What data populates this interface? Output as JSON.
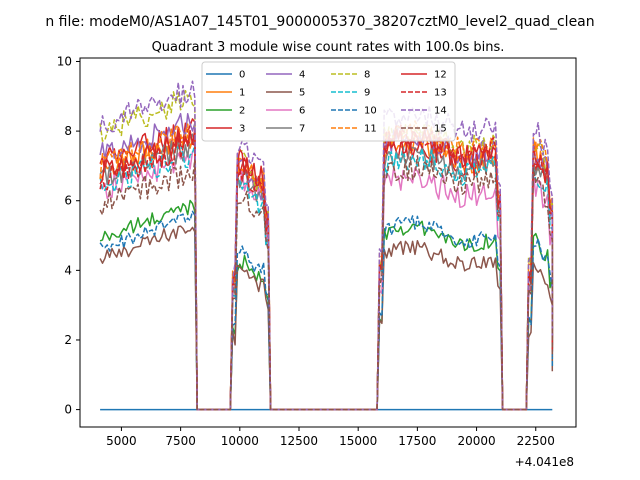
{
  "suptitle": "n file: modeM0/AS1A07_145T01_9000005370_38207cztM0_level2_quad_clean",
  "chart_data": {
    "type": "line",
    "title": "Quadrant 3 module wise count rates with 100.0s bins.",
    "xlabel": "",
    "ylabel": "",
    "x_offset_label": "+4.041e8",
    "xlim": [
      3250,
      24200
    ],
    "ylim": [
      -0.5,
      10.1
    ],
    "xticks": [
      5000,
      7500,
      10000,
      12500,
      15000,
      17500,
      20000,
      22500
    ],
    "yticks": [
      0,
      2,
      4,
      6,
      8,
      10
    ],
    "grid": false,
    "legend": {
      "position": "top-center",
      "columns": 4
    },
    "segments": [
      [
        4100,
        8100
      ],
      [
        9700,
        11200
      ],
      [
        15900,
        21000
      ],
      [
        22200,
        23200
      ]
    ],
    "gap_edges": [
      8300,
      9600,
      11350,
      15800,
      21100,
      22100
    ],
    "x_end": 23200,
    "series": [
      {
        "name": "0",
        "color": "#1f77b4",
        "dashed": false,
        "level": 0.0,
        "profile": [
          0,
          0,
          0,
          0
        ]
      },
      {
        "name": "1",
        "color": "#ff7f0e",
        "dashed": false,
        "level": 7.2,
        "profile": [
          7.3,
          6.9,
          7.4,
          7.1
        ]
      },
      {
        "name": "2",
        "color": "#2ca02c",
        "dashed": false,
        "level": 5.2,
        "profile": [
          5.3,
          4.0,
          5.0,
          4.6
        ]
      },
      {
        "name": "3",
        "color": "#d62728",
        "dashed": false,
        "level": 7.4,
        "profile": [
          7.5,
          6.8,
          7.3,
          7.0
        ]
      },
      {
        "name": "4",
        "color": "#9467bd",
        "dashed": false,
        "level": 7.6,
        "profile": [
          7.7,
          6.6,
          7.6,
          7.2
        ]
      },
      {
        "name": "5",
        "color": "#8c564b",
        "dashed": false,
        "level": 4.6,
        "profile": [
          4.7,
          3.8,
          4.4,
          4.0
        ]
      },
      {
        "name": "6",
        "color": "#e377c2",
        "dashed": false,
        "level": 6.6,
        "profile": [
          6.7,
          6.3,
          6.4,
          6.2
        ]
      },
      {
        "name": "7",
        "color": "#7f7f7f",
        "dashed": false,
        "level": 6.9,
        "profile": [
          7.0,
          6.4,
          7.1,
          6.8
        ]
      },
      {
        "name": "8",
        "color": "#bcbd22",
        "dashed": true,
        "level": 8.2,
        "profile": [
          8.4,
          6.9,
          7.8,
          7.5
        ]
      },
      {
        "name": "9",
        "color": "#17becf",
        "dashed": true,
        "level": 6.8,
        "profile": [
          6.8,
          6.2,
          7.0,
          6.6
        ]
      },
      {
        "name": "10",
        "color": "#1f77b4",
        "dashed": true,
        "level": 5.0,
        "profile": [
          5.0,
          4.3,
          5.1,
          4.6
        ]
      },
      {
        "name": "11",
        "color": "#ff7f0e",
        "dashed": true,
        "level": 7.4,
        "profile": [
          7.4,
          6.8,
          7.7,
          7.4
        ]
      },
      {
        "name": "12",
        "color": "#d62728",
        "dashed": false,
        "level": 7.3,
        "profile": [
          7.2,
          6.9,
          7.5,
          7.0
        ]
      },
      {
        "name": "13",
        "color": "#d62728",
        "dashed": true,
        "level": 7.0,
        "profile": [
          7.0,
          6.5,
          7.6,
          7.1
        ]
      },
      {
        "name": "14",
        "color": "#9467bd",
        "dashed": true,
        "level": 8.6,
        "profile": [
          8.6,
          7.3,
          8.3,
          7.8
        ]
      },
      {
        "name": "15",
        "color": "#8c564b",
        "dashed": true,
        "level": 6.3,
        "profile": [
          6.3,
          5.9,
          6.7,
          6.4
        ]
      }
    ]
  }
}
